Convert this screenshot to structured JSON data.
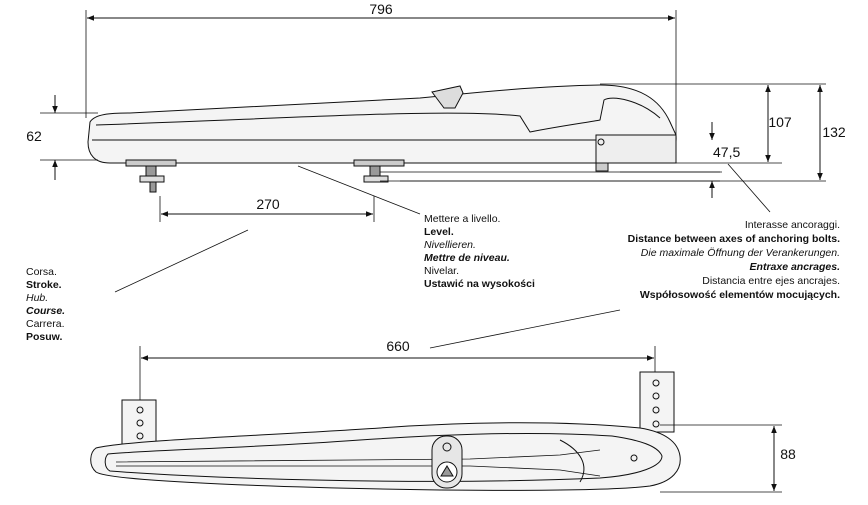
{
  "dimensions": {
    "total_length": "796",
    "body_height": "62",
    "bracket_spacing": "270",
    "height_to_top": "107",
    "overall_height": "132",
    "anchor_offset": "47,5",
    "stroke": "660",
    "bracket_depth": "88"
  },
  "level_note": [
    "Mettere a livello.",
    "Level.",
    "Nivellieren.",
    "Mettre de niveau.",
    "Nivelar.",
    "Ustawić na wysokości"
  ],
  "stroke_note": [
    "Corsa.",
    "Stroke.",
    "Hub.",
    "Course.",
    "Carrera.",
    "Posuw."
  ],
  "anchor_note": [
    "Interasse ancoraggi.",
    "Distance between axes of anchoring bolts.",
    "Die maximale Öffnung der Verankerungen.",
    "Entraxe ancrages.",
    "Distancia entre ejes ancrajes.",
    "Współosowość elementów mocujących."
  ]
}
